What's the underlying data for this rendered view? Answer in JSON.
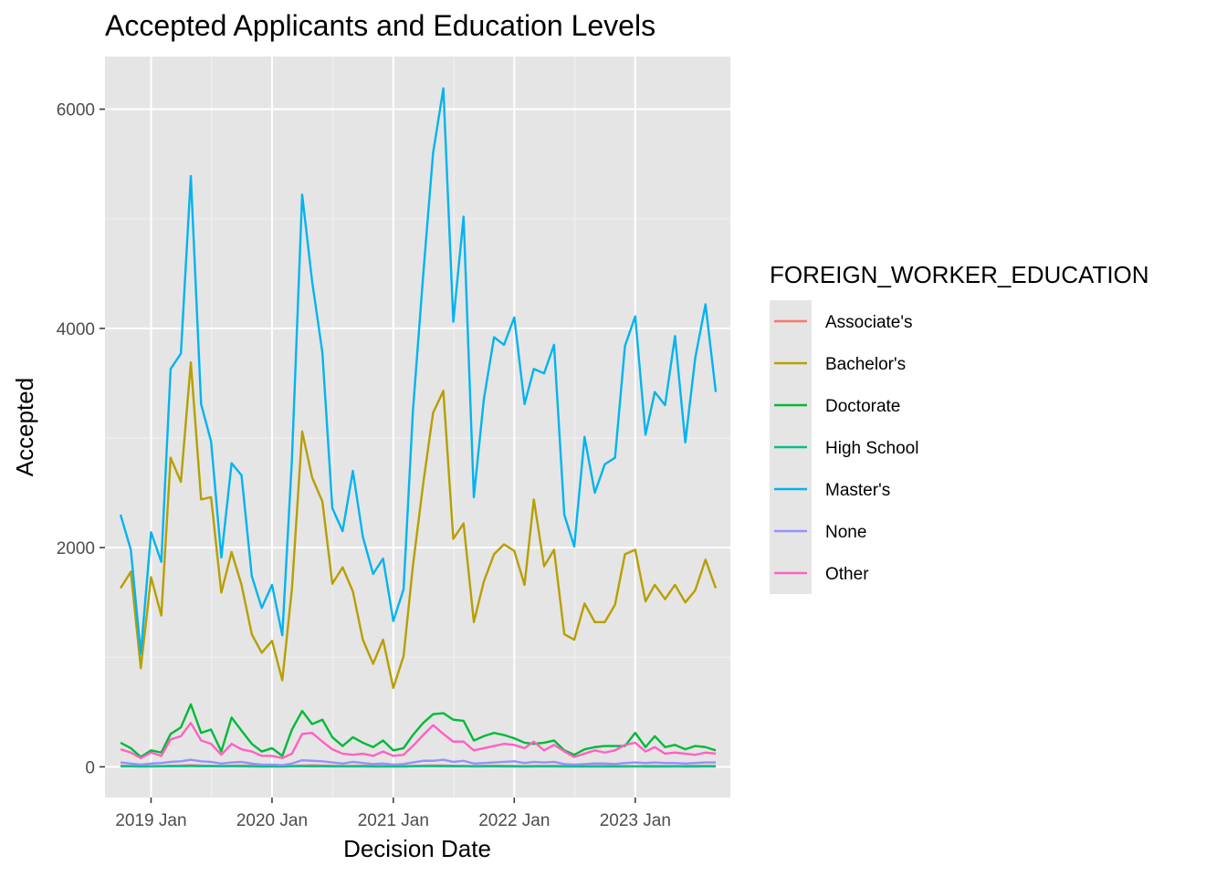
{
  "chart_data": {
    "type": "line",
    "title": "Accepted Applicants and Education Levels",
    "xlabel": "Decision Date",
    "ylabel": "Accepted",
    "x_ticks": [
      "2019 Jan",
      "2020 Jan",
      "2021 Jan",
      "2022 Jan",
      "2023 Jan"
    ],
    "x_tick_dates": [
      "2019-01",
      "2020-01",
      "2021-01",
      "2022-01",
      "2023-01"
    ],
    "xlim": [
      "2018-08-15",
      "2023-10-15"
    ],
    "y_ticks": [
      0,
      2000,
      4000,
      6000
    ],
    "ylim": [
      -280,
      6480
    ],
    "grid": true,
    "background": "#e5e5e5",
    "legend": {
      "title": "FOREIGN_WORKER_EDUCATION",
      "position": "right"
    },
    "x": [
      "2018-10",
      "2018-11",
      "2018-12",
      "2019-01",
      "2019-02",
      "2019-03",
      "2019-04",
      "2019-05",
      "2019-06",
      "2019-07",
      "2019-08",
      "2019-09",
      "2019-10",
      "2019-11",
      "2019-12",
      "2020-01",
      "2020-02",
      "2020-03",
      "2020-04",
      "2020-05",
      "2020-06",
      "2020-07",
      "2020-08",
      "2020-09",
      "2020-10",
      "2020-11",
      "2020-12",
      "2021-01",
      "2021-02",
      "2021-03",
      "2021-04",
      "2021-05",
      "2021-06",
      "2021-07",
      "2021-08",
      "2021-09",
      "2021-10",
      "2021-11",
      "2021-12",
      "2022-01",
      "2022-02",
      "2022-03",
      "2022-04",
      "2022-05",
      "2022-06",
      "2022-07",
      "2022-08",
      "2022-09",
      "2022-10",
      "2022-11",
      "2022-12",
      "2023-01",
      "2023-02",
      "2023-03",
      "2023-04",
      "2023-05",
      "2023-06",
      "2023-07",
      "2023-08",
      "2023-09"
    ],
    "series": [
      {
        "name": "Associate's",
        "color": "#F8766D",
        "values": [
          10,
          8,
          5,
          6,
          8,
          10,
          12,
          15,
          12,
          10,
          8,
          10,
          12,
          10,
          8,
          6,
          5,
          8,
          12,
          14,
          12,
          10,
          8,
          9,
          10,
          8,
          7,
          6,
          7,
          9,
          11,
          13,
          12,
          10,
          9,
          8,
          9,
          10,
          9,
          8,
          7,
          8,
          9,
          9,
          8,
          7,
          6,
          7,
          8,
          7,
          7,
          6,
          8,
          8,
          7,
          7,
          8,
          8,
          9,
          9
        ]
      },
      {
        "name": "Bachelor's",
        "color": "#B79F00",
        "values": [
          1630,
          1780,
          900,
          1730,
          1380,
          2820,
          2600,
          3690,
          2440,
          2460,
          1590,
          1960,
          1660,
          1210,
          1040,
          1150,
          790,
          1620,
          3060,
          2640,
          2420,
          1670,
          1820,
          1600,
          1160,
          940,
          1160,
          720,
          1010,
          1830,
          2580,
          3230,
          3430,
          2080,
          2220,
          1320,
          1690,
          1940,
          2030,
          1970,
          1660,
          2440,
          1830,
          1980,
          1210,
          1160,
          1490,
          1320,
          1320,
          1480,
          1940,
          1980,
          1510,
          1660,
          1530,
          1660,
          1500,
          1610,
          1890,
          1630
        ]
      },
      {
        "name": "Doctorate",
        "color": "#00BA38",
        "values": [
          220,
          170,
          90,
          150,
          130,
          300,
          360,
          570,
          310,
          340,
          140,
          450,
          330,
          210,
          140,
          170,
          100,
          340,
          510,
          390,
          430,
          270,
          190,
          270,
          220,
          180,
          240,
          150,
          170,
          290,
          400,
          480,
          490,
          430,
          420,
          240,
          280,
          310,
          290,
          260,
          220,
          210,
          220,
          240,
          150,
          110,
          160,
          180,
          190,
          190,
          190,
          310,
          180,
          280,
          180,
          200,
          160,
          190,
          180,
          150
        ]
      },
      {
        "name": "High School",
        "color": "#00C08B",
        "values": [
          5,
          5,
          3,
          4,
          5,
          6,
          6,
          7,
          6,
          6,
          5,
          6,
          5,
          4,
          3,
          3,
          3,
          5,
          6,
          5,
          5,
          4,
          4,
          4,
          4,
          3,
          3,
          3,
          3,
          5,
          6,
          6,
          6,
          5,
          5,
          4,
          4,
          5,
          4,
          4,
          3,
          4,
          4,
          4,
          3,
          3,
          3,
          3,
          3,
          3,
          3,
          4,
          3,
          4,
          3,
          4,
          3,
          3,
          4,
          4
        ]
      },
      {
        "name": "Master's",
        "color": "#00B4F0",
        "values": [
          2300,
          1980,
          1030,
          2140,
          1870,
          3630,
          3770,
          5390,
          3310,
          2970,
          1910,
          2770,
          2660,
          1740,
          1450,
          1660,
          1200,
          2800,
          5220,
          4430,
          3780,
          2360,
          2150,
          2700,
          2100,
          1760,
          1900,
          1330,
          1620,
          3240,
          4480,
          5600,
          6190,
          4060,
          5020,
          2460,
          3350,
          3920,
          3850,
          4100,
          3310,
          3630,
          3590,
          3850,
          2300,
          2010,
          3010,
          2500,
          2760,
          2820,
          3840,
          4110,
          3030,
          3420,
          3300,
          3930,
          2960,
          3730,
          4220,
          3420
        ]
      },
      {
        "name": "None",
        "color": "#9590FF",
        "values": [
          40,
          30,
          20,
          30,
          35,
          45,
          50,
          65,
          50,
          45,
          30,
          40,
          45,
          30,
          20,
          20,
          15,
          30,
          60,
          55,
          50,
          40,
          30,
          45,
          35,
          25,
          30,
          20,
          25,
          40,
          55,
          55,
          65,
          45,
          55,
          30,
          35,
          40,
          45,
          50,
          35,
          45,
          40,
          45,
          25,
          20,
          25,
          30,
          30,
          25,
          35,
          40,
          35,
          40,
          35,
          35,
          30,
          35,
          40,
          40
        ]
      },
      {
        "name": "Other",
        "color": "#FF61C3",
        "values": [
          160,
          130,
          80,
          130,
          100,
          250,
          280,
          400,
          240,
          210,
          110,
          210,
          160,
          140,
          100,
          100,
          80,
          120,
          300,
          310,
          230,
          160,
          120,
          110,
          120,
          100,
          140,
          100,
          110,
          190,
          290,
          380,
          300,
          230,
          230,
          150,
          170,
          190,
          210,
          200,
          170,
          230,
          150,
          200,
          140,
          90,
          120,
          150,
          130,
          150,
          200,
          220,
          140,
          180,
          120,
          130,
          120,
          110,
          130,
          120
        ]
      }
    ]
  }
}
